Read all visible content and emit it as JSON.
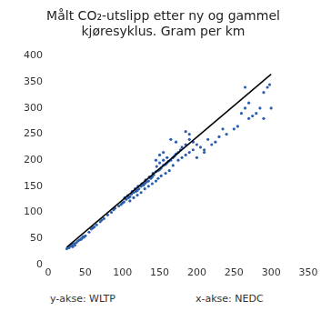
{
  "chart_data": {
    "type": "scatter",
    "title": [
      "Målt CO₂-utslipp etter ny og gammel",
      "kjøresyklus. Gram per km"
    ],
    "annotations": [
      "y-akse: WLTP",
      "x-akse: NEDC"
    ],
    "xlim": [
      0,
      350
    ],
    "xticks": [
      0,
      50,
      100,
      150,
      200,
      250,
      300,
      350
    ],
    "ylim": [
      0,
      400
    ],
    "yticks": [
      0,
      50,
      100,
      150,
      200,
      250,
      300,
      350,
      400
    ],
    "grid": false,
    "series": [
      {
        "type": "scatter",
        "color": "#2b5fae",
        "marker": "circle",
        "x": [
          25,
          28,
          30,
          32,
          35,
          38,
          40,
          42,
          45,
          47,
          50,
          33,
          36,
          44,
          48,
          55,
          58,
          60,
          62,
          65,
          70,
          72,
          75,
          80,
          85,
          88,
          90,
          95,
          98,
          100,
          102,
          105,
          108,
          110,
          112,
          115,
          118,
          120,
          122,
          125,
          128,
          130,
          132,
          135,
          138,
          140,
          103,
          107,
          113,
          117,
          121,
          126,
          131,
          136,
          141,
          110,
          115,
          120,
          125,
          130,
          135,
          140,
          145,
          142,
          145,
          148,
          150,
          152,
          155,
          158,
          160,
          162,
          165,
          168,
          170,
          146,
          150,
          155,
          160,
          145,
          150,
          155,
          148,
          152,
          158,
          163,
          168,
          172,
          175,
          178,
          180,
          185,
          175,
          180,
          185,
          190,
          195,
          172,
          165,
          190,
          195,
          200,
          205,
          210,
          200,
          210,
          185,
          190,
          215,
          220,
          225,
          230,
          240,
          250,
          255,
          235,
          260,
          265,
          270,
          270,
          275,
          280,
          285,
          290,
          295,
          298,
          300,
          290,
          265
        ],
        "values": [
          30,
          32,
          35,
          38,
          40,
          42,
          45,
          47,
          50,
          53,
          55,
          34,
          37,
          48,
          52,
          62,
          68,
          70,
          72,
          76,
          82,
          85,
          88,
          95,
          100,
          105,
          108,
          112,
          115,
          118,
          120,
          125,
          128,
          130,
          135,
          138,
          140,
          142,
          145,
          150,
          152,
          155,
          158,
          160,
          165,
          168,
          128,
          132,
          140,
          145,
          150,
          155,
          162,
          168,
          175,
          122,
          128,
          133,
          138,
          145,
          150,
          155,
          160,
          172,
          178,
          180,
          182,
          185,
          190,
          192,
          195,
          198,
          200,
          205,
          208,
          188,
          195,
          200,
          205,
          200,
          210,
          215,
          165,
          170,
          175,
          180,
          190,
          212,
          215,
          220,
          225,
          230,
          200,
          205,
          210,
          215,
          220,
          235,
          240,
          240,
          235,
          230,
          225,
          220,
          205,
          215,
          255,
          250,
          240,
          230,
          235,
          245,
          250,
          260,
          265,
          260,
          290,
          300,
          310,
          280,
          285,
          290,
          300,
          330,
          340,
          345,
          300,
          280,
          340
        ]
      },
      {
        "type": "line",
        "color": "#000000",
        "line_style": "solid",
        "x": [
          25,
          300
        ],
        "values": [
          33,
          365
        ]
      }
    ]
  }
}
